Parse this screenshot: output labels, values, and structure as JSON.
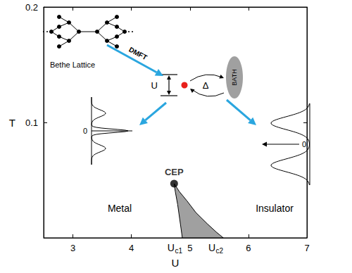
{
  "chart_data": {
    "type": "phase_diagram",
    "x_label": "U",
    "y_label": "T",
    "xlim": [
      2.5,
      7
    ],
    "xticks": [
      3,
      4,
      5,
      6,
      7
    ],
    "ylim": [
      0,
      0.2
    ],
    "yticks": [
      0.1,
      0.2
    ],
    "series": [
      {
        "type": "area",
        "color": "#a0a0a0",
        "x": [
          4.87,
          4.84,
          4.79,
          4.75,
          4.73,
          4.82,
          4.95,
          5.1,
          5.3,
          5.45,
          5.57
        ],
        "values": [
          0,
          0.011,
          0.029,
          0.04,
          0.047,
          0.04,
          0.032,
          0.022,
          0.012,
          0.005,
          0
        ]
      },
      {
        "type": "scatter",
        "color": "#000000",
        "marker": "circle",
        "x": [
          4.73
        ],
        "values": [
          0.047
        ],
        "label": "CEP"
      }
    ],
    "critical_points": [
      {
        "text": "U",
        "subscript": "c1",
        "x": 4.87
      },
      {
        "text": "U",
        "subscript": "c2",
        "x": 5.57
      }
    ],
    "regions": [
      "Metal",
      "Insulator"
    ]
  },
  "insets": {
    "lattice_label": "Bethe Lattice",
    "arrow_label": "DMFT",
    "impurity": {
      "interaction": "U",
      "hybridization": "Δ",
      "bath": "BATH"
    },
    "metal_dos": {
      "zero": "0"
    },
    "insulator_dos": {
      "zero": "0"
    }
  }
}
